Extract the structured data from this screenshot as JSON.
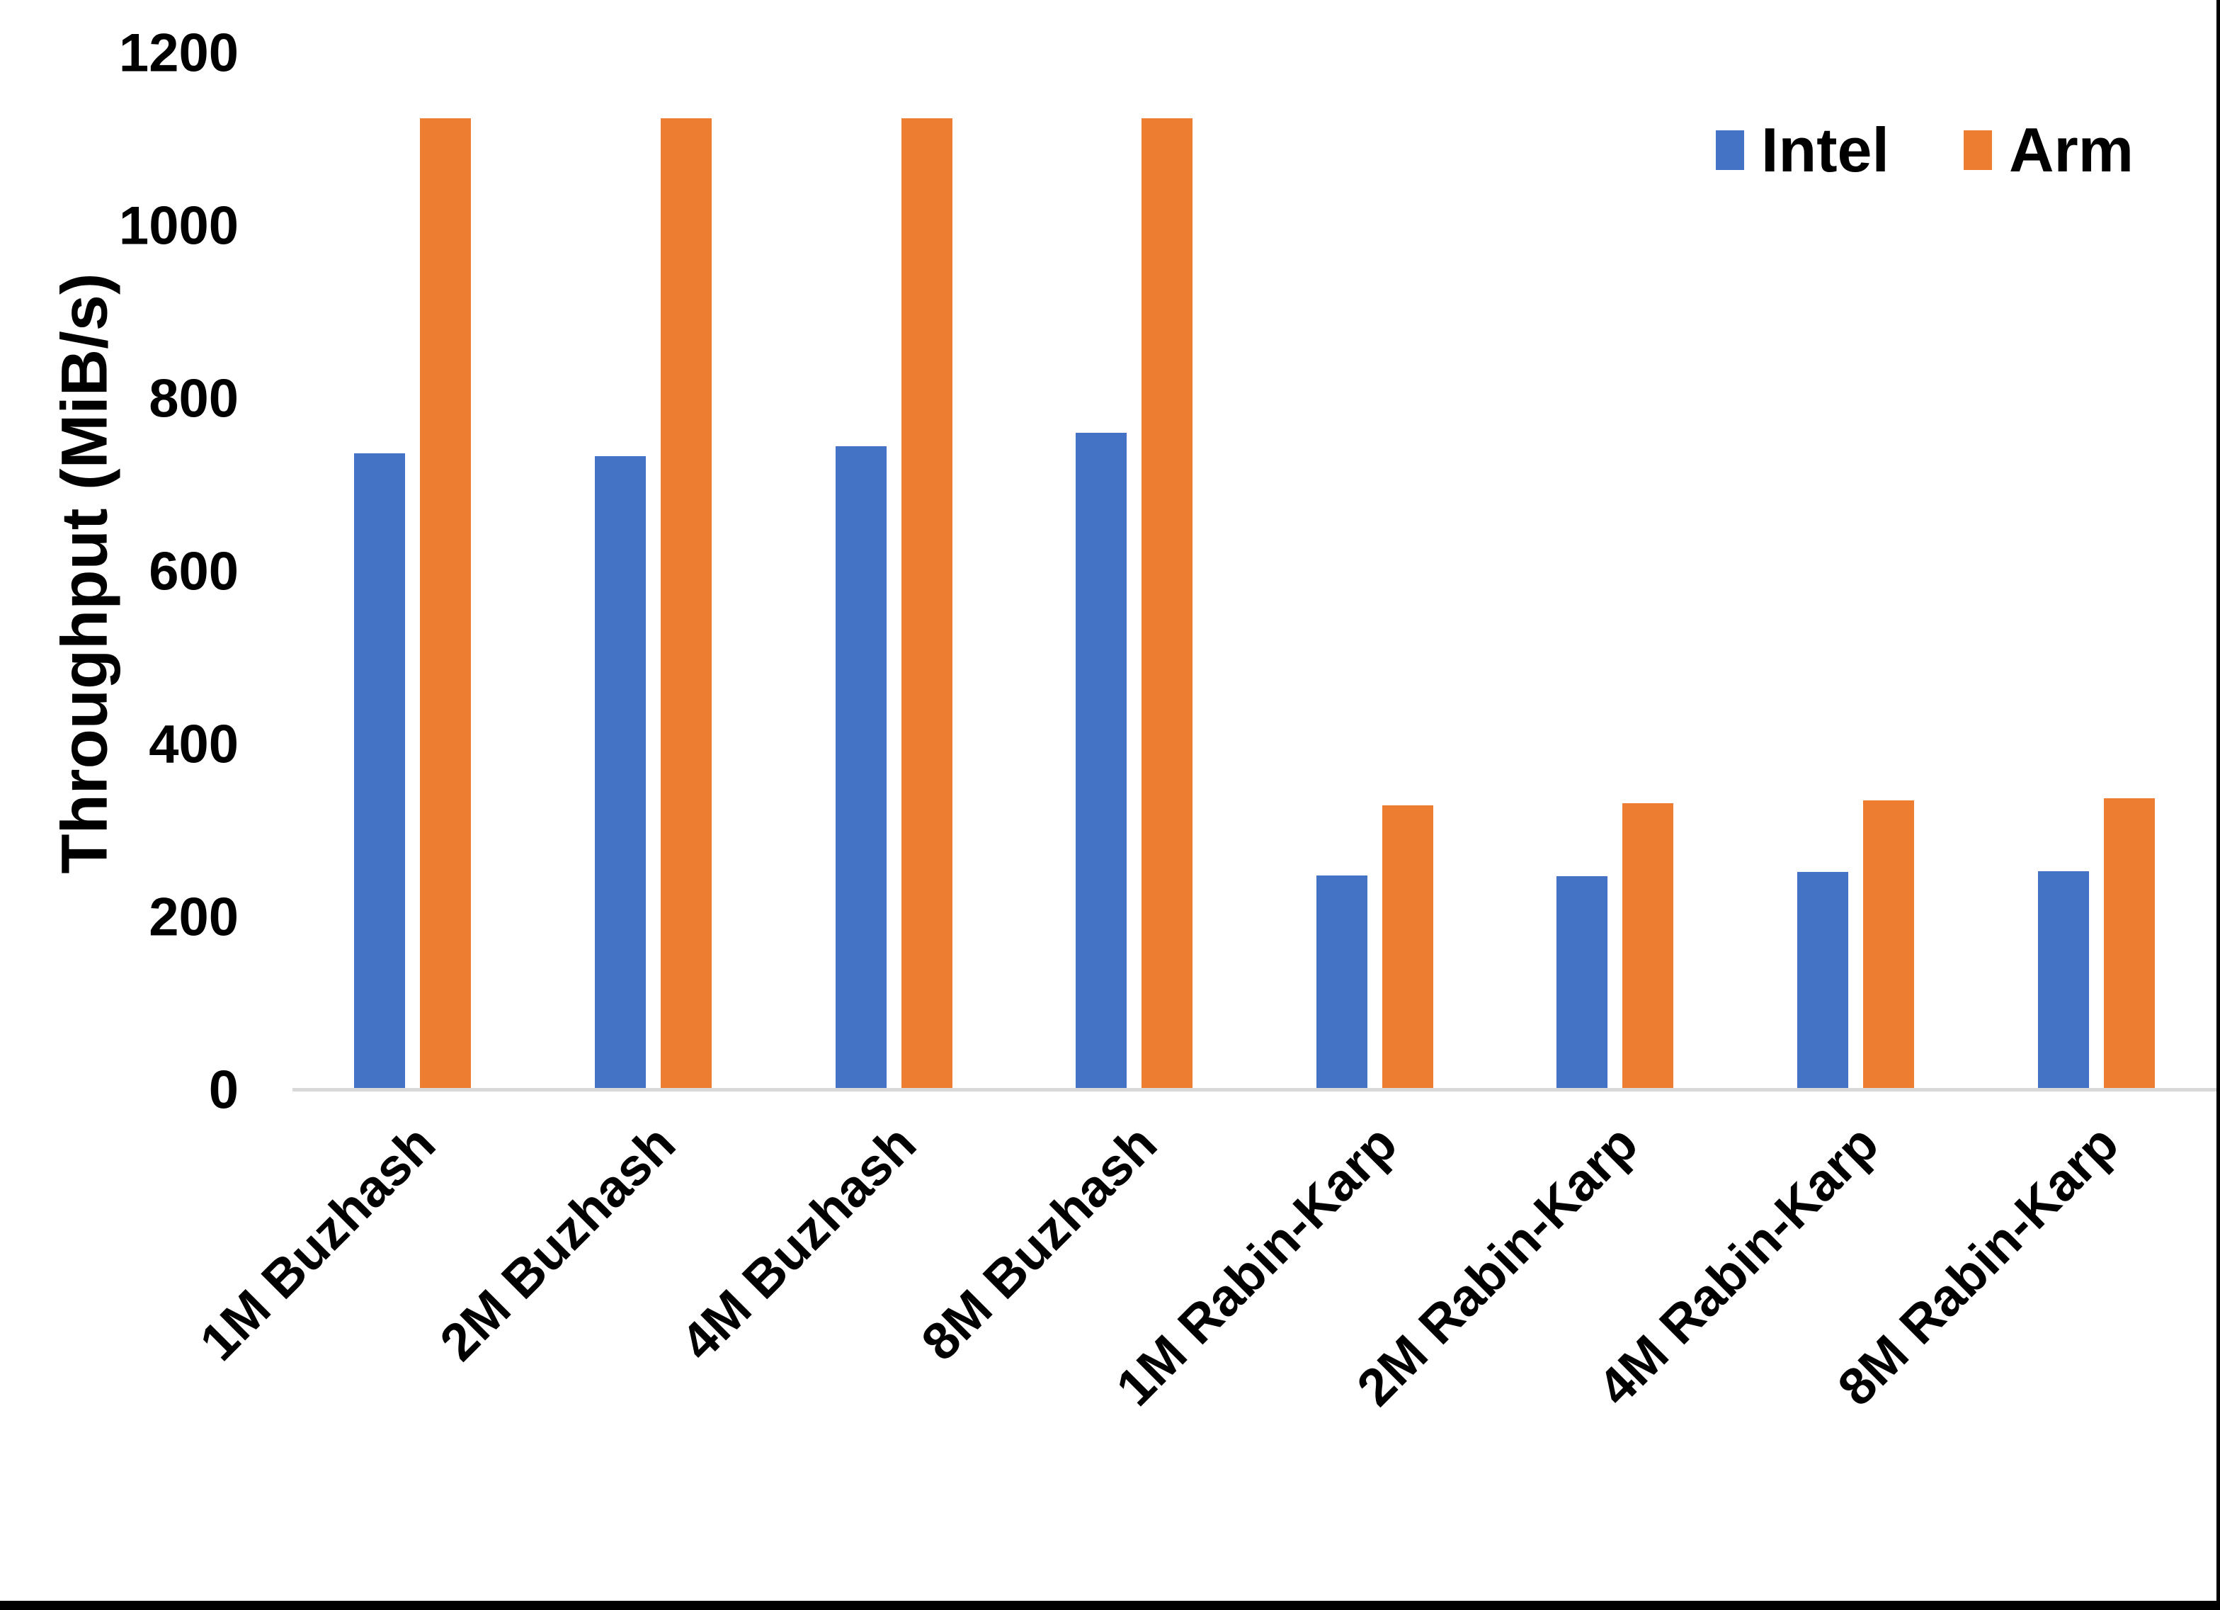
{
  "frame": {
    "background": "#FFFFFF",
    "border_color": "#000000"
  },
  "y_axis": {
    "title": "Throughput (MiB/s)",
    "tick_labels": [
      "0",
      "200",
      "400",
      "600",
      "800",
      "1000",
      "1200"
    ],
    "axis_line_color": "#D9D9D9",
    "text_color": "#000000"
  },
  "legend": {
    "position": "top-right",
    "items": [
      {
        "label": "Intel",
        "color": "#4472C4"
      },
      {
        "label": "Arm",
        "color": "#ED7D31"
      }
    ]
  },
  "chart_data": {
    "type": "bar",
    "title": "",
    "xlabel": "",
    "ylabel": "Throughput (MiB/s)",
    "ylim": [
      0,
      1200
    ],
    "yticks": [
      0,
      200,
      400,
      600,
      800,
      1000,
      1200
    ],
    "grid": false,
    "legend_position": "top-right",
    "categories": [
      "1M Buzhash",
      "2M Buzhash",
      "4M Buzhash",
      "8M Buzhash",
      "1M Rabin-Karp",
      "2M Rabin-Karp",
      "4M Rabin-Karp",
      "8M Rabin-Karp"
    ],
    "series": [
      {
        "name": "Intel",
        "color": "#4472C4",
        "values": [
          737,
          734,
          745,
          761,
          247,
          246,
          251,
          252
        ]
      },
      {
        "name": "Arm",
        "color": "#ED7D31",
        "values": [
          1126,
          1126,
          1126,
          1126,
          328,
          331,
          334,
          336
        ]
      }
    ]
  }
}
